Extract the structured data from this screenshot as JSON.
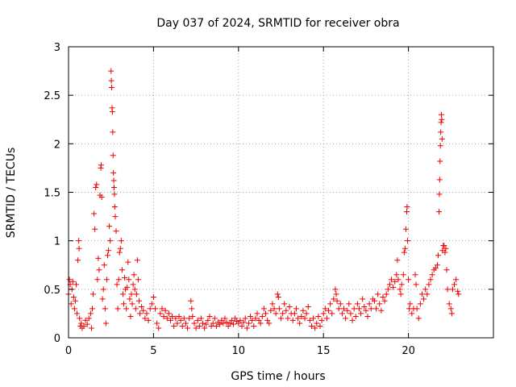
{
  "chart_data": {
    "type": "scatter",
    "title": "Day 037 of 2024, SRMTID for receiver obra",
    "xlabel": "GPS time / hours",
    "ylabel": "SRMTID / TECUs",
    "xlim": [
      0,
      25
    ],
    "ylim": [
      0,
      3
    ],
    "grid": true,
    "marker": "+",
    "color": "#ee0000",
    "xticks": [
      {
        "value": 0,
        "label": "0"
      },
      {
        "value": 5,
        "label": "5"
      },
      {
        "value": 10,
        "label": "10"
      },
      {
        "value": 15,
        "label": "15"
      },
      {
        "value": 20,
        "label": "20"
      }
    ],
    "yticks": [
      {
        "value": 0,
        "label": "0"
      },
      {
        "value": 0.5,
        "label": "0.5"
      },
      {
        "value": 1,
        "label": "1"
      },
      {
        "value": 1.5,
        "label": "1.5"
      },
      {
        "value": 2,
        "label": "2"
      },
      {
        "value": 2.5,
        "label": "2.5"
      },
      {
        "value": 3,
        "label": "3"
      }
    ],
    "series": [
      {
        "name": "SRMTID",
        "points": [
          [
            0.0,
            0.45
          ],
          [
            0.05,
            0.6
          ],
          [
            0.1,
            0.55
          ],
          [
            0.15,
            0.35
          ],
          [
            0.2,
            0.5
          ],
          [
            0.25,
            0.58
          ],
          [
            0.3,
            0.42
          ],
          [
            0.35,
            0.3
          ],
          [
            0.4,
            0.38
          ],
          [
            0.45,
            0.55
          ],
          [
            0.5,
            0.25
          ],
          [
            0.55,
            0.8
          ],
          [
            0.6,
            1.0
          ],
          [
            0.62,
            0.92
          ],
          [
            0.65,
            0.2
          ],
          [
            0.7,
            0.12
          ],
          [
            0.75,
            0.15
          ],
          [
            0.8,
            0.1
          ],
          [
            0.9,
            0.12
          ],
          [
            1.0,
            0.18
          ],
          [
            1.1,
            0.14
          ],
          [
            1.2,
            0.2
          ],
          [
            1.3,
            0.25
          ],
          [
            1.35,
            0.1
          ],
          [
            1.4,
            0.3
          ],
          [
            1.45,
            0.45
          ],
          [
            1.5,
            1.28
          ],
          [
            1.55,
            1.12
          ],
          [
            1.6,
            1.55
          ],
          [
            1.65,
            1.58
          ],
          [
            1.7,
            0.6
          ],
          [
            1.75,
            0.82
          ],
          [
            1.8,
            0.7
          ],
          [
            1.85,
            1.47
          ],
          [
            1.9,
            1.75
          ],
          [
            1.92,
            1.78
          ],
          [
            1.95,
            1.45
          ],
          [
            2.0,
            0.4
          ],
          [
            2.05,
            0.5
          ],
          [
            2.1,
            0.75
          ],
          [
            2.15,
            0.3
          ],
          [
            2.2,
            0.15
          ],
          [
            2.25,
            0.6
          ],
          [
            2.3,
            0.85
          ],
          [
            2.35,
            0.9
          ],
          [
            2.4,
            1.15
          ],
          [
            2.45,
            1.0
          ],
          [
            2.5,
            2.75
          ],
          [
            2.52,
            2.65
          ],
          [
            2.54,
            2.58
          ],
          [
            2.56,
            2.37
          ],
          [
            2.58,
            2.33
          ],
          [
            2.6,
            2.12
          ],
          [
            2.62,
            1.88
          ],
          [
            2.64,
            1.7
          ],
          [
            2.66,
            1.62
          ],
          [
            2.68,
            1.55
          ],
          [
            2.7,
            1.48
          ],
          [
            2.72,
            1.35
          ],
          [
            2.75,
            1.25
          ],
          [
            2.8,
            1.1
          ],
          [
            2.85,
            0.55
          ],
          [
            2.9,
            0.3
          ],
          [
            2.95,
            0.6
          ],
          [
            3.0,
            0.88
          ],
          [
            3.05,
            0.92
          ],
          [
            3.1,
            1.0
          ],
          [
            3.15,
            0.7
          ],
          [
            3.2,
            0.45
          ],
          [
            3.25,
            0.35
          ],
          [
            3.3,
            0.62
          ],
          [
            3.35,
            0.5
          ],
          [
            3.4,
            0.3
          ],
          [
            3.45,
            0.52
          ],
          [
            3.5,
            0.78
          ],
          [
            3.55,
            0.6
          ],
          [
            3.6,
            0.4
          ],
          [
            3.65,
            0.22
          ],
          [
            3.7,
            0.45
          ],
          [
            3.75,
            0.35
          ],
          [
            3.8,
            0.55
          ],
          [
            3.85,
            0.65
          ],
          [
            3.9,
            0.5
          ],
          [
            3.95,
            0.3
          ],
          [
            4.0,
            0.45
          ],
          [
            4.05,
            0.8
          ],
          [
            4.1,
            0.6
          ],
          [
            4.15,
            0.38
          ],
          [
            4.2,
            0.25
          ],
          [
            4.3,
            0.32
          ],
          [
            4.4,
            0.28
          ],
          [
            4.5,
            0.2
          ],
          [
            4.6,
            0.25
          ],
          [
            4.7,
            0.18
          ],
          [
            4.8,
            0.3
          ],
          [
            4.9,
            0.35
          ],
          [
            5.0,
            0.42
          ],
          [
            5.1,
            0.3
          ],
          [
            5.2,
            0.15
          ],
          [
            5.3,
            0.1
          ],
          [
            5.4,
            0.25
          ],
          [
            5.5,
            0.3
          ],
          [
            5.6,
            0.22
          ],
          [
            5.7,
            0.28
          ],
          [
            5.8,
            0.2
          ],
          [
            5.9,
            0.25
          ],
          [
            6.0,
            0.18
          ],
          [
            6.1,
            0.22
          ],
          [
            6.2,
            0.12
          ],
          [
            6.3,
            0.2
          ],
          [
            6.4,
            0.15
          ],
          [
            6.5,
            0.22
          ],
          [
            6.6,
            0.18
          ],
          [
            6.7,
            0.12
          ],
          [
            6.8,
            0.2
          ],
          [
            6.9,
            0.15
          ],
          [
            7.0,
            0.1
          ],
          [
            7.1,
            0.2
          ],
          [
            7.2,
            0.38
          ],
          [
            7.25,
            0.3
          ],
          [
            7.3,
            0.22
          ],
          [
            7.4,
            0.15
          ],
          [
            7.5,
            0.1
          ],
          [
            7.6,
            0.18
          ],
          [
            7.7,
            0.12
          ],
          [
            7.8,
            0.2
          ],
          [
            7.9,
            0.15
          ],
          [
            8.0,
            0.1
          ],
          [
            8.1,
            0.14
          ],
          [
            8.2,
            0.18
          ],
          [
            8.3,
            0.22
          ],
          [
            8.4,
            0.12
          ],
          [
            8.5,
            0.15
          ],
          [
            8.6,
            0.2
          ],
          [
            8.7,
            0.12
          ],
          [
            8.8,
            0.16
          ],
          [
            8.9,
            0.14
          ],
          [
            9.0,
            0.18
          ],
          [
            9.1,
            0.15
          ],
          [
            9.2,
            0.2
          ],
          [
            9.3,
            0.16
          ],
          [
            9.4,
            0.12
          ],
          [
            9.5,
            0.15
          ],
          [
            9.6,
            0.18
          ],
          [
            9.7,
            0.14
          ],
          [
            9.8,
            0.2
          ],
          [
            9.9,
            0.17
          ],
          [
            10.0,
            0.15
          ],
          [
            10.1,
            0.18
          ],
          [
            10.2,
            0.12
          ],
          [
            10.3,
            0.16
          ],
          [
            10.4,
            0.2
          ],
          [
            10.5,
            0.1
          ],
          [
            10.6,
            0.15
          ],
          [
            10.7,
            0.22
          ],
          [
            10.8,
            0.18
          ],
          [
            10.9,
            0.12
          ],
          [
            11.0,
            0.2
          ],
          [
            11.1,
            0.25
          ],
          [
            11.2,
            0.18
          ],
          [
            11.3,
            0.15
          ],
          [
            11.4,
            0.22
          ],
          [
            11.5,
            0.3
          ],
          [
            11.6,
            0.25
          ],
          [
            11.7,
            0.18
          ],
          [
            11.8,
            0.15
          ],
          [
            11.9,
            0.28
          ],
          [
            12.0,
            0.35
          ],
          [
            12.1,
            0.3
          ],
          [
            12.2,
            0.25
          ],
          [
            12.3,
            0.45
          ],
          [
            12.35,
            0.42
          ],
          [
            12.4,
            0.3
          ],
          [
            12.5,
            0.2
          ],
          [
            12.6,
            0.25
          ],
          [
            12.7,
            0.35
          ],
          [
            12.8,
            0.28
          ],
          [
            12.9,
            0.2
          ],
          [
            13.0,
            0.32
          ],
          [
            13.1,
            0.25
          ],
          [
            13.2,
            0.18
          ],
          [
            13.3,
            0.25
          ],
          [
            13.4,
            0.3
          ],
          [
            13.5,
            0.2
          ],
          [
            13.6,
            0.15
          ],
          [
            13.7,
            0.22
          ],
          [
            13.8,
            0.28
          ],
          [
            13.9,
            0.2
          ],
          [
            14.0,
            0.25
          ],
          [
            14.1,
            0.32
          ],
          [
            14.2,
            0.18
          ],
          [
            14.3,
            0.12
          ],
          [
            14.4,
            0.2
          ],
          [
            14.5,
            0.1
          ],
          [
            14.6,
            0.15
          ],
          [
            14.7,
            0.22
          ],
          [
            14.8,
            0.12
          ],
          [
            14.9,
            0.18
          ],
          [
            15.0,
            0.25
          ],
          [
            15.1,
            0.3
          ],
          [
            15.2,
            0.2
          ],
          [
            15.3,
            0.28
          ],
          [
            15.4,
            0.35
          ],
          [
            15.5,
            0.25
          ],
          [
            15.6,
            0.4
          ],
          [
            15.7,
            0.5
          ],
          [
            15.75,
            0.45
          ],
          [
            15.8,
            0.38
          ],
          [
            15.9,
            0.3
          ],
          [
            16.0,
            0.35
          ],
          [
            16.1,
            0.25
          ],
          [
            16.2,
            0.3
          ],
          [
            16.3,
            0.2
          ],
          [
            16.4,
            0.28
          ],
          [
            16.5,
            0.35
          ],
          [
            16.6,
            0.25
          ],
          [
            16.7,
            0.18
          ],
          [
            16.8,
            0.3
          ],
          [
            16.9,
            0.22
          ],
          [
            17.0,
            0.35
          ],
          [
            17.1,
            0.3
          ],
          [
            17.2,
            0.25
          ],
          [
            17.3,
            0.4
          ],
          [
            17.4,
            0.32
          ],
          [
            17.5,
            0.28
          ],
          [
            17.6,
            0.22
          ],
          [
            17.7,
            0.35
          ],
          [
            17.8,
            0.3
          ],
          [
            17.9,
            0.4
          ],
          [
            18.0,
            0.38
          ],
          [
            18.1,
            0.3
          ],
          [
            18.2,
            0.45
          ],
          [
            18.3,
            0.35
          ],
          [
            18.4,
            0.28
          ],
          [
            18.5,
            0.42
          ],
          [
            18.6,
            0.38
          ],
          [
            18.7,
            0.45
          ],
          [
            18.8,
            0.5
          ],
          [
            18.9,
            0.55
          ],
          [
            19.0,
            0.6
          ],
          [
            19.1,
            0.52
          ],
          [
            19.2,
            0.58
          ],
          [
            19.3,
            0.65
          ],
          [
            19.35,
            0.8
          ],
          [
            19.4,
            0.6
          ],
          [
            19.5,
            0.5
          ],
          [
            19.55,
            0.45
          ],
          [
            19.6,
            0.55
          ],
          [
            19.7,
            0.65
          ],
          [
            19.75,
            0.88
          ],
          [
            19.8,
            0.92
          ],
          [
            19.85,
            1.12
          ],
          [
            19.9,
            1.3
          ],
          [
            19.92,
            1.35
          ],
          [
            19.95,
            1.0
          ],
          [
            20.0,
            0.6
          ],
          [
            20.05,
            0.3
          ],
          [
            20.1,
            0.35
          ],
          [
            20.2,
            0.25
          ],
          [
            20.3,
            0.3
          ],
          [
            20.4,
            0.65
          ],
          [
            20.45,
            0.55
          ],
          [
            20.5,
            0.3
          ],
          [
            20.6,
            0.2
          ],
          [
            20.7,
            0.35
          ],
          [
            20.8,
            0.45
          ],
          [
            20.9,
            0.4
          ],
          [
            21.0,
            0.5
          ],
          [
            21.1,
            0.45
          ],
          [
            21.2,
            0.55
          ],
          [
            21.3,
            0.6
          ],
          [
            21.4,
            0.65
          ],
          [
            21.5,
            0.7
          ],
          [
            21.6,
            0.72
          ],
          [
            21.7,
            0.75
          ],
          [
            21.75,
            0.85
          ],
          [
            21.8,
            1.3
          ],
          [
            21.82,
            1.48
          ],
          [
            21.84,
            1.63
          ],
          [
            21.86,
            1.82
          ],
          [
            21.88,
            1.98
          ],
          [
            21.9,
            2.12
          ],
          [
            21.92,
            2.22
          ],
          [
            21.94,
            2.3
          ],
          [
            21.96,
            2.25
          ],
          [
            21.98,
            2.05
          ],
          [
            22.0,
            0.9
          ],
          [
            22.05,
            0.95
          ],
          [
            22.1,
            0.95
          ],
          [
            22.15,
            0.88
          ],
          [
            22.2,
            0.92
          ],
          [
            22.25,
            0.7
          ],
          [
            22.3,
            0.5
          ],
          [
            22.4,
            0.35
          ],
          [
            22.5,
            0.3
          ],
          [
            22.55,
            0.25
          ],
          [
            22.6,
            0.5
          ],
          [
            22.7,
            0.55
          ],
          [
            22.8,
            0.6
          ],
          [
            22.9,
            0.48
          ],
          [
            22.95,
            0.45
          ]
        ]
      }
    ]
  }
}
